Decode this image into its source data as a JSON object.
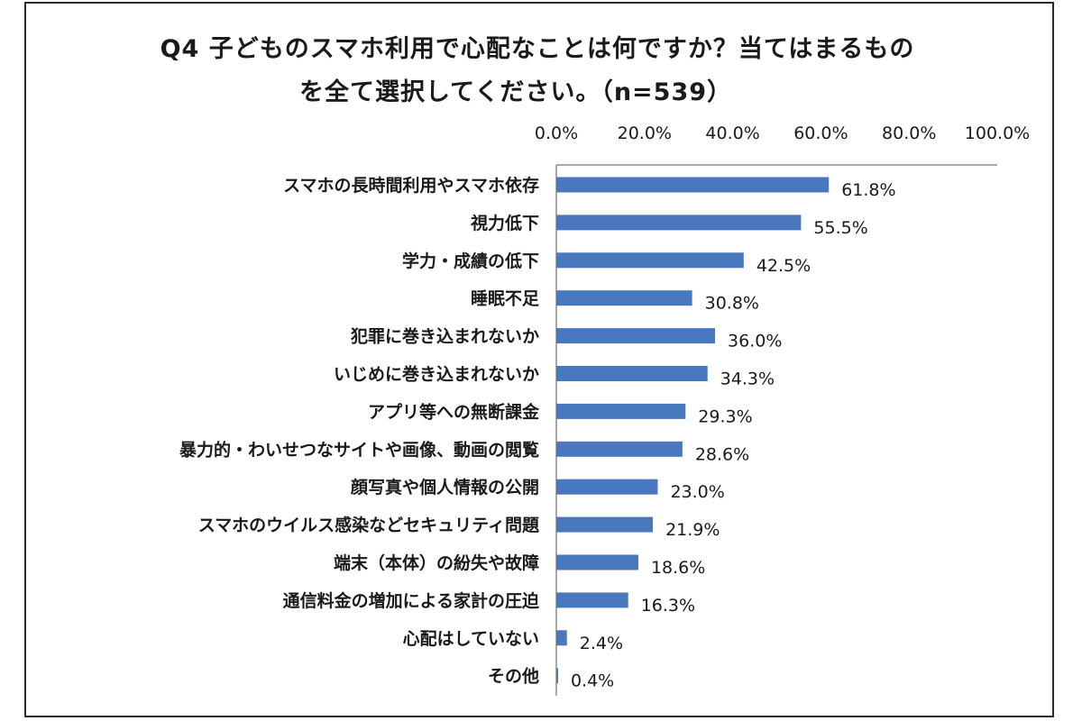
{
  "chart_data": {
    "type": "bar",
    "orientation": "horizontal",
    "title_line1": "Q4 子どものスマホ利用で心配なことは何ですか？当てはまるもの",
    "title_line2": "を全て選択してください。（n=539）",
    "xlim": [
      0,
      100
    ],
    "x_ticks": [
      "0.0%",
      "20.0%",
      "40.0%",
      "60.0%",
      "80.0%",
      "100.0%"
    ],
    "x_axis_position": "top",
    "grid": false,
    "bar_color": "#4a78be",
    "categories": [
      "スマホの長時間利用やスマホ依存",
      "視力低下",
      "学力・成績の低下",
      "睡眠不足",
      "犯罪に巻き込まれないか",
      "いじめに巻き込まれないか",
      "アプリ等への無断課金",
      "暴力的・わいせつなサイトや画像、動画の閲覧",
      "顔写真や個人情報の公開",
      "スマホのウイルス感染などセキュリティ問題",
      "端末（本体）の紛失や故障",
      "通信料金の増加による家計の圧迫",
      "心配はしていない",
      "その他"
    ],
    "values": [
      61.8,
      55.5,
      42.5,
      30.8,
      36.0,
      34.3,
      29.3,
      28.6,
      23.0,
      21.9,
      18.6,
      16.3,
      2.4,
      0.4
    ],
    "value_labels": [
      "61.8%",
      "55.5%",
      "42.5%",
      "30.8%",
      "36.0%",
      "34.3%",
      "29.3%",
      "28.6%",
      "23.0%",
      "21.9%",
      "18.6%",
      "16.3%",
      "2.4%",
      "0.4%"
    ]
  }
}
